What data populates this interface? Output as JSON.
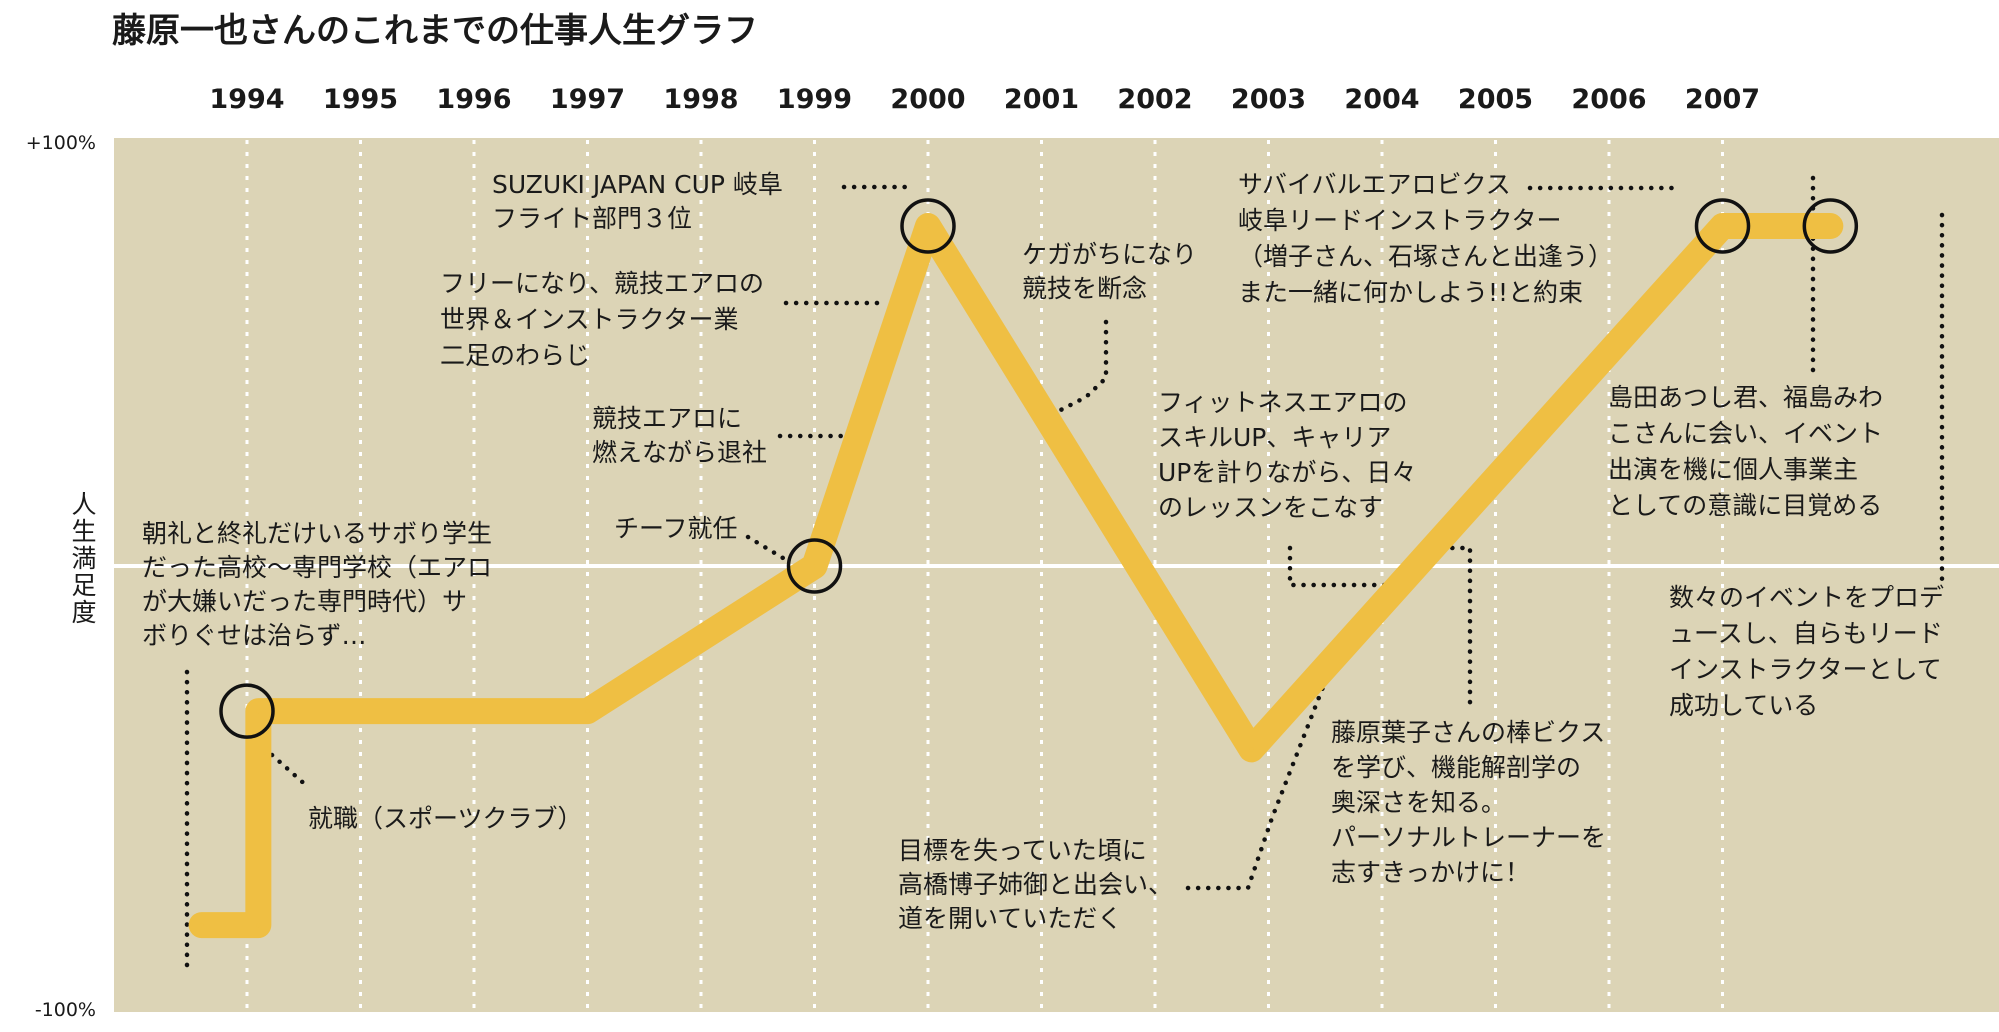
{
  "chart_data": {
    "type": "line",
    "title": "藤原一也さんのこれまでの仕事人生グラフ",
    "ylabel": "人生満足度",
    "y_top_label": "+100%",
    "y_bottom_label": "-100%",
    "ylim": [
      -100,
      100
    ],
    "x_ticks": [
      "1994",
      "1995",
      "1996",
      "1997",
      "1998",
      "1999",
      "2000",
      "2001",
      "2002",
      "2003",
      "2004",
      "2005",
      "2006",
      "2007"
    ],
    "xlim": [
      1993.6,
      2008.0
    ],
    "series": [
      {
        "points": [
          {
            "x": 1993.6,
            "y": -94
          },
          {
            "x": 1994.1,
            "y": -94
          },
          {
            "x": 1994.1,
            "y": -38
          },
          {
            "x": 1997.0,
            "y": -38
          },
          {
            "x": 1999.0,
            "y": 0
          },
          {
            "x": 2000.0,
            "y": 89
          },
          {
            "x": 2002.85,
            "y": -48
          },
          {
            "x": 2007.0,
            "y": 89
          },
          {
            "x": 2007.95,
            "y": 89
          }
        ]
      }
    ],
    "milestones": [
      {
        "x": 1994.0,
        "y": -38
      },
      {
        "x": 1999.0,
        "y": 0
      },
      {
        "x": 2000.0,
        "y": 89
      },
      {
        "x": 2007.0,
        "y": 89
      },
      {
        "x": 2007.95,
        "y": 89
      }
    ],
    "annotations": [
      {
        "lines": [
          "朝礼と終礼だけいるサボり学生",
          "だった高校～専門学校（エアロ",
          "が大嫌いだった専門時代）サ",
          "ボりぐせは治らず…"
        ]
      },
      {
        "lines": [
          "就職（スポーツクラブ）"
        ]
      },
      {
        "lines": [
          "チーフ就任"
        ]
      },
      {
        "lines": [
          "競技エアロに",
          "燃えながら退社"
        ]
      },
      {
        "lines": [
          "フリーになり、競技エアロの",
          "世界＆インストラクター業",
          "二足のわらじ"
        ]
      },
      {
        "lines": [
          "SUZUKI JAPAN CUP 岐阜",
          "フライト部門３位"
        ]
      },
      {
        "lines": [
          "ケガがちになり",
          "競技を断念"
        ]
      },
      {
        "lines": [
          "目標を失っていた頃に",
          "高橋博子姉御と出会い、",
          "道を開いていただく"
        ]
      },
      {
        "lines": [
          "フィットネスエアロの",
          "スキルUP、キャリア",
          "UPを計りながら、日々",
          "のレッスンをこなす"
        ]
      },
      {
        "lines": [
          "藤原葉子さんの棒ビクス",
          "を学び、機能解剖学の",
          "奥深さを知る。",
          "パーソナルトレーナーを",
          "志すきっかけに！"
        ]
      },
      {
        "lines": [
          "サバイバルエアロビクス",
          "岐阜リードインストラクター",
          "（増子さん、石塚さんと出逢う）",
          "また一緒に何かしよう!!と約束"
        ]
      },
      {
        "lines": [
          "島田あつし君、福島みわ",
          "こさんに会い、イベント",
          "出演を機に個人事業主",
          "としての意識に目覚める"
        ]
      },
      {
        "lines": [
          "数々のイベントをプロデ",
          "ュースし、自らもリード",
          "インストラクターとして",
          "成功している"
        ]
      }
    ]
  }
}
